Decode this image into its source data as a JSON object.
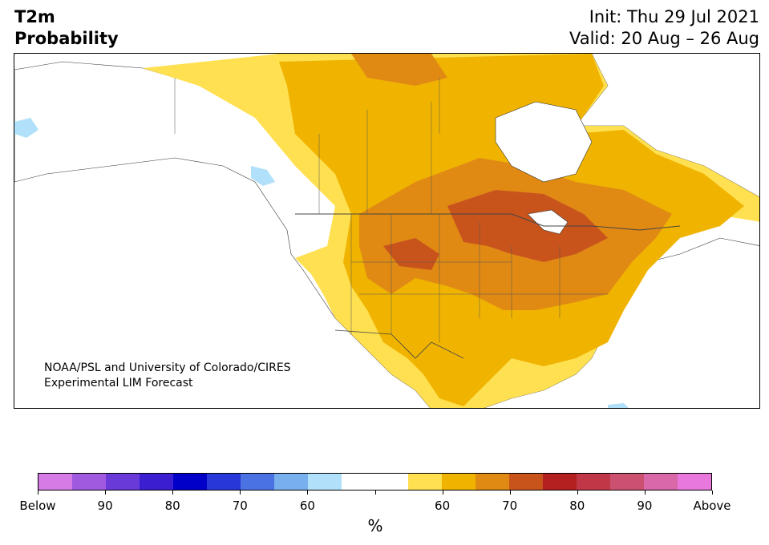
{
  "header": {
    "variable": "T2m",
    "product": "Probability",
    "init": "Init: Thu 29 Jul 2021",
    "valid": "Valid: 20 Aug – 26 Aug"
  },
  "map": {
    "credit_line1": "NOAA/PSL and University of Colorado/CIRES",
    "credit_line2": "Experimental LIM Forecast"
  },
  "colorbar": {
    "colors": [
      "#d67ae6",
      "#9f5ae0",
      "#6a3ad8",
      "#3a1ecf",
      "#0000c8",
      "#2838d8",
      "#4a72e2",
      "#78b0ee",
      "#b0e0fa",
      "#ffffff",
      "#ffffff",
      "#ffe050",
      "#f0b400",
      "#e08a14",
      "#c8541c",
      "#b42020",
      "#c03848",
      "#cc5070",
      "#d868a8",
      "#e878dc"
    ],
    "tick_labels": [
      "Below",
      "90",
      "80",
      "70",
      "60",
      "",
      "60",
      "70",
      "80",
      "90",
      "Above"
    ],
    "units": "%"
  }
}
